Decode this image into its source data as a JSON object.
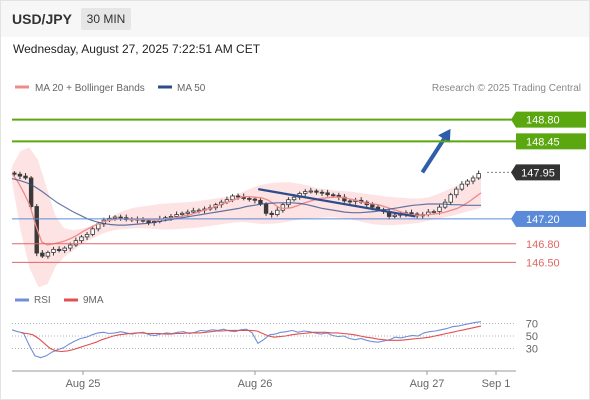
{
  "header": {
    "symbol": "USD/JPY",
    "timeframe": "30 MIN",
    "datetime": "Wednesday, August 27, 2025 7:22:51 AM CET"
  },
  "legend": {
    "ma20": "MA 20 + Bollinger Bands",
    "ma50": "MA 50",
    "rsi": "RSI",
    "rsi_ma": "9MA",
    "credit": "Research © 2025 Trading Central"
  },
  "colors": {
    "ma20": "#f08a8a",
    "ma50": "#2c4d8c",
    "bollinger_fill": "#fde3e3",
    "candle": "#3a3a3a",
    "resistance": "#5aa70f",
    "pivot": "#5b8bd8",
    "support": "#e06666",
    "last_price": "#333333",
    "trend_arrow": "#2f5da8",
    "rsi_line": "#6f8fd8",
    "rsi_ma_line": "#e05050",
    "axis_text": "#666666"
  },
  "chart_data": [
    {
      "type": "candlestick",
      "title": "USD/JPY",
      "timeframe": "30 MIN",
      "x_labels": [
        "Aug 25",
        "Aug 26",
        "Aug 27",
        "Sep 1"
      ],
      "ylim": [
        146.2,
        149.1
      ],
      "close_series": [
        147.92,
        147.89,
        147.86,
        147.4,
        146.65,
        146.6,
        146.66,
        146.71,
        146.69,
        146.73,
        146.78,
        146.85,
        146.91,
        146.95,
        147.04,
        147.12,
        147.18,
        147.21,
        147.23,
        147.22,
        147.19,
        147.2,
        147.18,
        147.17,
        147.14,
        147.16,
        147.2,
        147.22,
        147.24,
        147.27,
        147.29,
        147.31,
        147.33,
        147.34,
        147.36,
        147.38,
        147.43,
        147.47,
        147.51,
        147.57,
        147.56,
        147.53,
        147.52,
        147.5,
        147.44,
        147.29,
        147.27,
        147.34,
        147.43,
        147.51,
        147.55,
        147.61,
        147.64,
        147.65,
        147.63,
        147.62,
        147.59,
        147.58,
        147.55,
        147.49,
        147.48,
        147.5,
        147.47,
        147.43,
        147.39,
        147.35,
        147.32,
        147.24,
        147.26,
        147.28,
        147.3,
        147.28,
        147.25,
        147.27,
        147.31,
        147.32,
        147.39,
        147.47,
        147.59,
        147.68,
        147.76,
        147.81,
        147.86,
        147.93
      ],
      "ma20": [
        147.93,
        147.8,
        147.62,
        147.42,
        147.1,
        146.83,
        146.78,
        146.8,
        146.82,
        146.85,
        146.89,
        146.94,
        147.0,
        147.05,
        147.1,
        147.14,
        147.17,
        147.19,
        147.2,
        147.2,
        147.19,
        147.19,
        147.19,
        147.19,
        147.18,
        147.19,
        147.2,
        147.21,
        147.23,
        147.25,
        147.27,
        147.3,
        147.33,
        147.36,
        147.39,
        147.43,
        147.46,
        147.49,
        147.53,
        147.56,
        147.56,
        147.55,
        147.54,
        147.51,
        147.45,
        147.38,
        147.37,
        147.38,
        147.41,
        147.45,
        147.48,
        147.51,
        147.53,
        147.54,
        147.55,
        147.55,
        147.54,
        147.52,
        147.5,
        147.47,
        147.45,
        147.44,
        147.42,
        147.39,
        147.36,
        147.33,
        147.3,
        147.27,
        147.26,
        147.26,
        147.27,
        147.28,
        147.29,
        147.31,
        147.34,
        147.37,
        147.42,
        147.48,
        147.55,
        147.62
      ],
      "ma50": [
        147.85,
        147.82,
        147.78,
        147.72,
        147.64,
        147.55,
        147.46,
        147.39,
        147.32,
        147.26,
        147.2,
        147.16,
        147.13,
        147.11,
        147.1,
        147.1,
        147.11,
        147.12,
        147.13,
        147.15,
        147.17,
        147.19,
        147.21,
        147.23,
        147.25,
        147.27,
        147.29,
        147.31,
        147.33,
        147.35,
        147.37,
        147.4,
        147.42,
        147.44,
        147.45,
        147.46,
        147.46,
        147.46,
        147.45,
        147.43,
        147.4,
        147.37,
        147.35,
        147.33,
        147.31,
        147.3,
        147.3,
        147.31,
        147.32,
        147.34,
        147.36,
        147.38,
        147.4,
        147.42,
        147.43,
        147.44,
        147.44,
        147.44,
        147.43,
        147.43,
        147.42,
        147.42,
        147.42
      ],
      "bollinger_upper": [
        148.05,
        148.3,
        148.35,
        148.15,
        147.7,
        147.25,
        147.05,
        147.02,
        147.04,
        147.08,
        147.13,
        147.2,
        147.28,
        147.34,
        147.38,
        147.4,
        147.42,
        147.44,
        147.45,
        147.46,
        147.47,
        147.48,
        147.5,
        147.52,
        147.54,
        147.56,
        147.6,
        147.66,
        147.72,
        147.76,
        147.78,
        147.79,
        147.79,
        147.77,
        147.74,
        147.7,
        147.68,
        147.66,
        147.65,
        147.64,
        147.62,
        147.6,
        147.58,
        147.56,
        147.55,
        147.54,
        147.53,
        147.53,
        147.55,
        147.6,
        147.66,
        147.72,
        147.78,
        147.85,
        147.92
      ],
      "bollinger_lower": [
        147.8,
        147.0,
        146.4,
        146.1,
        146.15,
        146.45,
        146.6,
        146.7,
        146.8,
        146.88,
        146.95,
        147.0,
        147.03,
        147.04,
        147.05,
        147.05,
        147.04,
        147.03,
        147.03,
        147.04,
        147.05,
        147.06,
        147.08,
        147.1,
        147.12,
        147.14,
        147.15,
        147.14,
        147.12,
        147.12,
        147.13,
        147.15,
        147.18,
        147.2,
        147.21,
        147.22,
        147.23,
        147.22,
        147.2,
        147.17,
        147.14,
        147.11,
        147.1,
        147.1,
        147.11,
        147.12,
        147.14,
        147.17,
        147.2,
        147.23,
        147.26,
        147.3,
        147.34,
        147.38
      ],
      "levels": [
        {
          "label": "148.80",
          "value": 148.8,
          "type": "resistance"
        },
        {
          "label": "148.45",
          "value": 148.45,
          "type": "resistance"
        },
        {
          "label": "147.95",
          "value": 147.95,
          "type": "last"
        },
        {
          "label": "147.20",
          "value": 147.2,
          "type": "pivot"
        },
        {
          "label": "146.80",
          "value": 146.8,
          "type": "support"
        },
        {
          "label": "146.50",
          "value": 146.5,
          "type": "support"
        }
      ],
      "trendline": [
        {
          "x": 0.525,
          "y": 147.68
        },
        {
          "x": 0.86,
          "y": 147.24
        }
      ],
      "arrow": [
        {
          "x": 0.875,
          "y": 147.95
        },
        {
          "x": 0.935,
          "y": 148.65
        }
      ]
    },
    {
      "type": "line",
      "title": "RSI",
      "series_names": [
        "RSI",
        "9MA"
      ],
      "yticks": [
        30,
        50,
        70
      ],
      "ylim": [
        0,
        100
      ],
      "rsi": [
        60,
        57,
        55,
        35,
        18,
        15,
        18,
        24,
        28,
        31,
        37,
        42,
        46,
        48,
        52,
        55,
        56,
        54,
        55,
        57,
        55,
        53,
        55,
        56,
        52,
        51,
        53,
        55,
        54,
        56,
        57,
        54,
        56,
        59,
        58,
        60,
        59,
        61,
        58,
        57,
        60,
        61,
        55,
        38,
        44,
        52,
        53,
        56,
        57,
        59,
        56,
        58,
        57,
        55,
        53,
        55,
        51,
        49,
        50,
        46,
        44,
        46,
        43,
        41,
        40,
        42,
        44,
        48,
        47,
        49,
        51,
        50,
        55,
        57,
        58,
        60,
        62,
        65,
        66,
        68,
        70,
        72,
        73
      ],
      "rsi_ma": [
        55,
        54,
        52,
        46,
        38,
        30,
        26,
        25,
        26,
        28,
        31,
        34,
        37,
        40,
        44,
        47,
        50,
        52,
        53,
        54,
        55,
        55,
        54,
        54,
        54,
        53,
        53,
        54,
        54,
        55,
        55,
        55,
        56,
        57,
        58,
        58,
        59,
        59,
        59,
        59,
        59,
        58,
        54,
        50,
        48,
        49,
        50,
        52,
        53,
        54,
        55,
        56,
        56,
        56,
        55,
        55,
        54,
        53,
        52,
        50,
        48,
        47,
        45,
        44,
        43,
        43,
        43,
        44,
        45,
        46,
        47,
        48,
        50,
        52,
        54,
        56,
        58,
        60,
        62,
        64,
        66
      ]
    }
  ]
}
